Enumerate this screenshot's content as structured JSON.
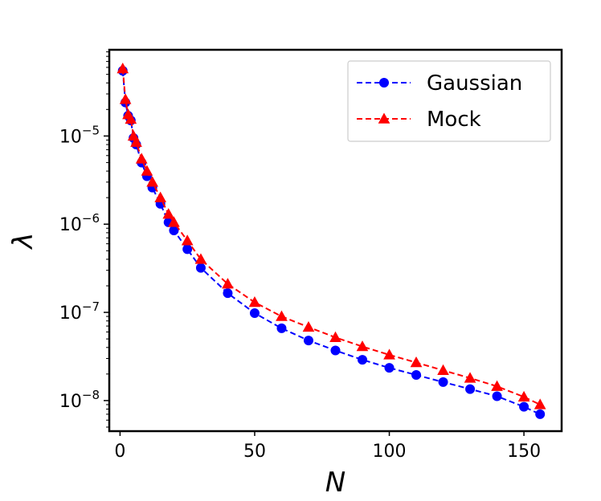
{
  "chart_data": {
    "type": "line",
    "title": "",
    "xlabel": "N",
    "ylabel": "λ",
    "xlim": [
      -4,
      164
    ],
    "ylim": [
      4.5e-09,
      9.5e-05
    ],
    "yscale": "log",
    "x_ticks": [
      0,
      50,
      100,
      150
    ],
    "x_tick_labels": [
      "0",
      "50",
      "100",
      "150"
    ],
    "y_ticks": [
      1e-08,
      1e-07,
      1e-06,
      1e-05
    ],
    "y_tick_labels": [
      {
        "base": "10",
        "exp": "−8"
      },
      {
        "base": "10",
        "exp": "−7"
      },
      {
        "base": "10",
        "exp": "−6"
      },
      {
        "base": "10",
        "exp": "−5"
      }
    ],
    "grid": false,
    "legend": "top-right",
    "series": [
      {
        "name": "Gaussian",
        "color": "#0000ff",
        "marker": "circle",
        "linestyle": "dashed",
        "x": [
          1,
          2,
          3,
          4,
          5,
          6,
          8,
          10,
          12,
          15,
          18,
          20,
          25,
          30,
          40,
          50,
          60,
          70,
          80,
          90,
          100,
          110,
          120,
          130,
          140,
          150,
          156
        ],
        "y": [
          5.5e-05,
          2.4e-05,
          1.7e-05,
          1.5e-05,
          9.5e-06,
          8e-06,
          5e-06,
          3.5e-06,
          2.6e-06,
          1.7e-06,
          1.05e-06,
          8.5e-07,
          5.2e-07,
          3.2e-07,
          1.65e-07,
          9.8e-08,
          6.6e-08,
          4.8e-08,
          3.7e-08,
          2.9e-08,
          2.35e-08,
          1.95e-08,
          1.62e-08,
          1.35e-08,
          1.12e-08,
          8.5e-09,
          7e-09
        ]
      },
      {
        "name": "Mock",
        "color": "#ff0000",
        "marker": "triangle",
        "linestyle": "dashed",
        "x": [
          1,
          2,
          3,
          4,
          5,
          6,
          8,
          10,
          12,
          15,
          18,
          20,
          25,
          30,
          40,
          50,
          60,
          70,
          80,
          90,
          100,
          110,
          120,
          130,
          140,
          150,
          156
        ],
        "y": [
          5.8e-05,
          2.6e-05,
          1.75e-05,
          1.55e-05,
          1e-05,
          8.5e-06,
          5.5e-06,
          4e-06,
          3e-06,
          2e-06,
          1.3e-06,
          1.05e-06,
          6.5e-07,
          4e-07,
          2.1e-07,
          1.3e-07,
          9e-08,
          6.8e-08,
          5.2e-08,
          4.1e-08,
          3.3e-08,
          2.7e-08,
          2.2e-08,
          1.8e-08,
          1.45e-08,
          1.1e-08,
          9e-09
        ]
      }
    ]
  }
}
